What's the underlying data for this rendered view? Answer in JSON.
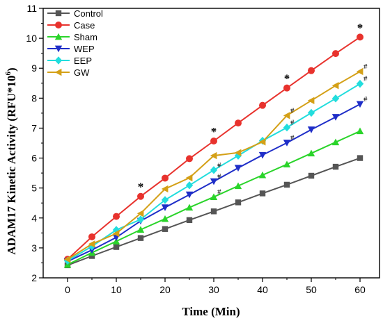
{
  "chart_data": {
    "type": "line",
    "title": "",
    "xlabel": "Time (Min)",
    "ylabel_main": "ADAM17 Kinetic Activity (RFU*10",
    "ylabel_exp": "6",
    "ylabel_close": ")",
    "xlim": [
      -5,
      64
    ],
    "ylim": [
      2,
      11
    ],
    "x_ticks": [
      "0",
      "10",
      "20",
      "30",
      "40",
      "50",
      "60"
    ],
    "y_ticks": [
      "2",
      "3",
      "4",
      "5",
      "6",
      "7",
      "8",
      "9",
      "10",
      "11"
    ],
    "x": [
      0,
      5,
      10,
      15,
      20,
      25,
      30,
      35,
      40,
      45,
      50,
      55,
      60
    ],
    "legend_position": "top-left",
    "series": [
      {
        "name": "Control",
        "color": "#555555",
        "marker": "square",
        "values": [
          2.42,
          2.73,
          3.03,
          3.33,
          3.63,
          3.93,
          4.22,
          4.52,
          4.82,
          5.11,
          5.41,
          5.71,
          6.0
        ]
      },
      {
        "name": "Case",
        "color": "#e8322d",
        "marker": "circle",
        "values": [
          2.62,
          3.37,
          4.05,
          4.72,
          5.33,
          5.98,
          6.57,
          7.17,
          7.76,
          8.34,
          8.92,
          9.49,
          10.04
        ]
      },
      {
        "name": "Sham",
        "color": "#2ad42a",
        "marker": "triangle-up",
        "values": [
          2.44,
          2.84,
          3.22,
          3.61,
          3.97,
          4.35,
          4.7,
          5.07,
          5.43,
          5.79,
          6.16,
          6.53,
          6.9
        ]
      },
      {
        "name": "WEP",
        "color": "#1f2ec8",
        "marker": "triangle-down",
        "values": [
          2.55,
          2.93,
          3.35,
          3.9,
          4.35,
          4.78,
          5.22,
          5.67,
          6.1,
          6.51,
          6.95,
          7.37,
          7.8
        ]
      },
      {
        "name": "EEP",
        "color": "#22dddd",
        "marker": "diamond",
        "values": [
          2.57,
          3.05,
          3.6,
          3.95,
          4.6,
          5.09,
          5.6,
          6.08,
          6.58,
          7.02,
          7.51,
          7.99,
          8.48
        ]
      },
      {
        "name": "GW",
        "color": "#d4a017",
        "marker": "triangle-left",
        "values": [
          2.62,
          3.13,
          3.48,
          4.15,
          4.97,
          5.34,
          6.08,
          6.18,
          6.54,
          7.42,
          7.92,
          8.42,
          8.89
        ]
      }
    ],
    "annotations": [
      {
        "text": "*",
        "x": 15,
        "y": 4.72
      },
      {
        "text": "*",
        "x": 30,
        "y": 6.57
      },
      {
        "text": "*",
        "x": 45,
        "y": 8.34
      },
      {
        "text": "*",
        "x": 60,
        "y": 10.04
      },
      {
        "text": "#",
        "x": 30,
        "y": 4.7
      },
      {
        "text": "#",
        "x": 30,
        "y": 5.22
      },
      {
        "text": "#",
        "x": 30,
        "y": 5.6
      },
      {
        "text": "#",
        "x": 45,
        "y": 6.51
      },
      {
        "text": "#",
        "x": 45,
        "y": 7.02
      },
      {
        "text": "#",
        "x": 45,
        "y": 7.42
      },
      {
        "text": "#",
        "x": 60,
        "y": 7.8
      },
      {
        "text": "#",
        "x": 60,
        "y": 8.48
      },
      {
        "text": "#",
        "x": 60,
        "y": 8.89
      }
    ]
  }
}
